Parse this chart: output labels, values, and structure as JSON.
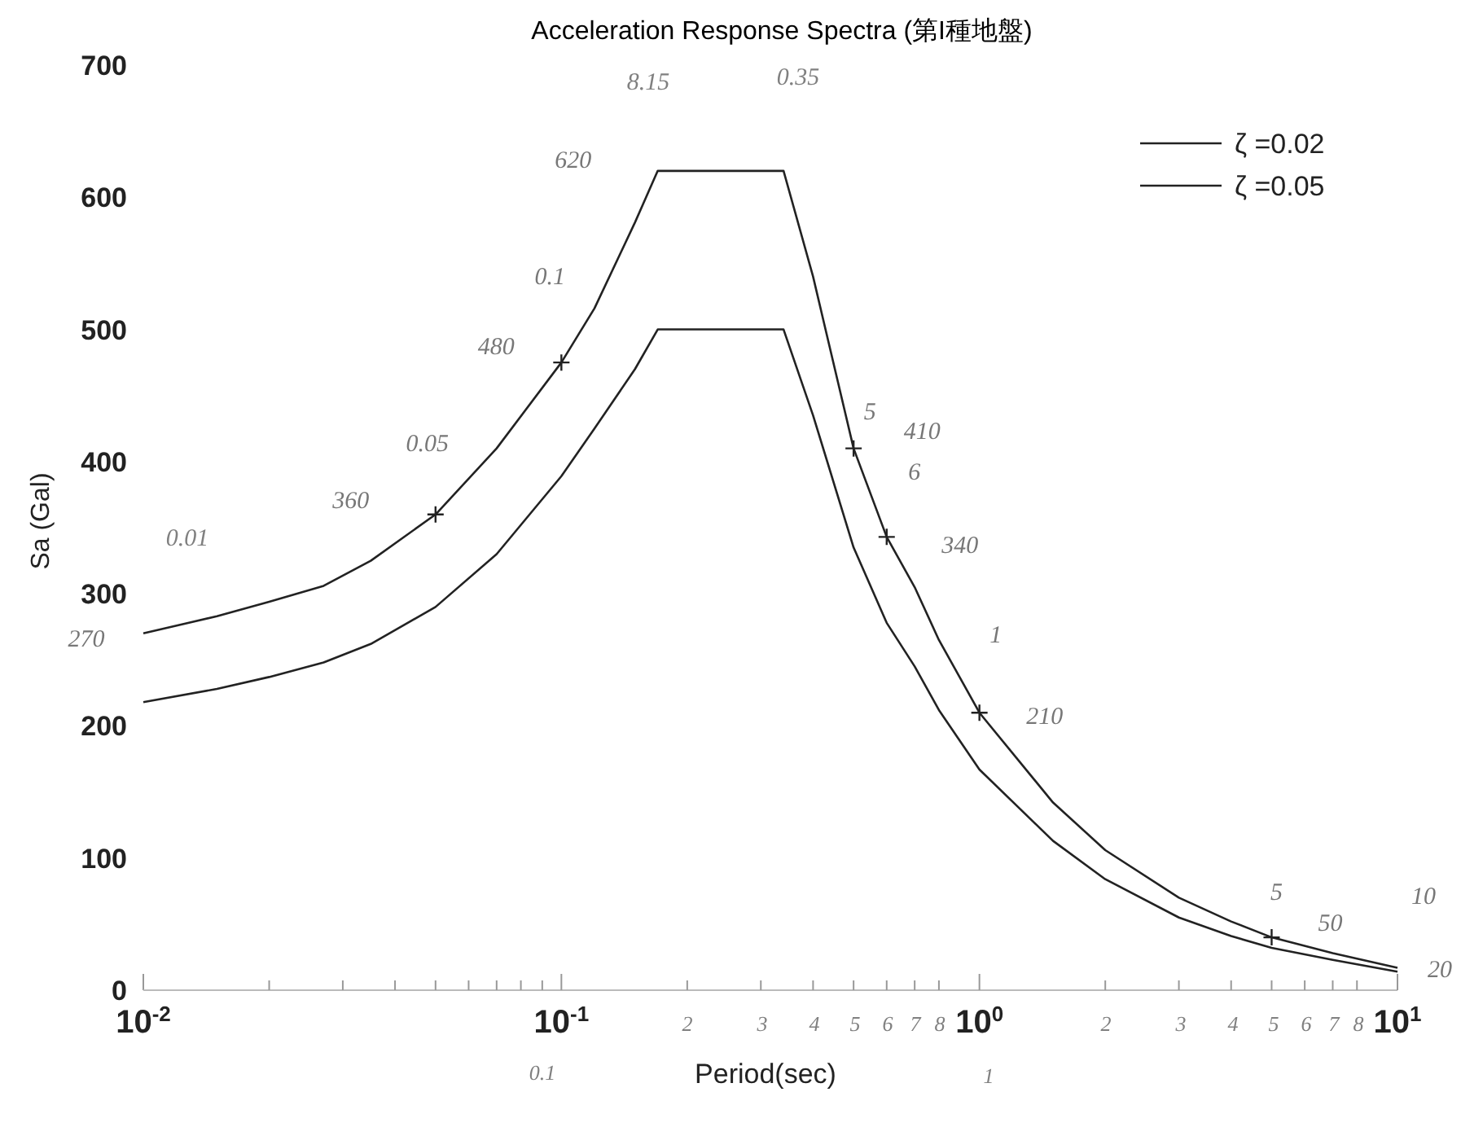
{
  "chart_data": {
    "type": "line",
    "title": "Acceleration Response Spectra (第I種地盤)",
    "xlabel": "Period(sec)",
    "ylabel": "Sa (Gal)",
    "log": "x",
    "xlim": [
      0.01,
      10
    ],
    "ylim": [
      0,
      700
    ],
    "xticks": [
      {
        "value": 0.01,
        "label": "10$^{-2}$"
      },
      {
        "value": 0.02,
        "label": null
      },
      {
        "value": 0.03,
        "label": null
      },
      {
        "value": 0.04,
        "label": null
      },
      {
        "value": 0.05,
        "label": null
      },
      {
        "value": 0.06,
        "label": null
      },
      {
        "value": 0.07,
        "label": null
      },
      {
        "value": 0.08,
        "label": null
      },
      {
        "value": 0.09,
        "label": null
      },
      {
        "value": 0.1,
        "label": "10$^{-1}$"
      },
      {
        "value": 0.2,
        "label": null
      },
      {
        "value": 0.3,
        "label": null
      },
      {
        "value": 0.4,
        "label": null
      },
      {
        "value": 0.5,
        "label": null
      },
      {
        "value": 0.6,
        "label": null
      },
      {
        "value": 0.7,
        "label": null
      },
      {
        "value": 0.8,
        "label": null
      },
      {
        "value": 1,
        "label": "10$^{0}$"
      },
      {
        "value": 2,
        "label": null
      },
      {
        "value": 3,
        "label": null
      },
      {
        "value": 4,
        "label": null
      },
      {
        "value": 5,
        "label": null
      },
      {
        "value": 6,
        "label": null
      },
      {
        "value": 7,
        "label": null
      },
      {
        "value": 8,
        "label": null
      },
      {
        "value": 10,
        "label": "10$^{1}$"
      }
    ],
    "yticks": [
      0,
      100,
      200,
      300,
      400,
      500,
      600,
      700
    ],
    "grid": false,
    "legend": "top right",
    "marker": "none",
    "line_style": "solid",
    "series": [
      {
        "name": "ζ =0.02",
        "color": "#222222",
        "x": [
          0.01,
          0.015,
          0.02,
          0.027,
          0.035,
          0.05,
          0.07,
          0.1,
          0.12,
          0.15,
          0.17,
          0.34,
          0.4,
          0.5,
          0.6,
          0.7,
          0.8,
          1,
          1.5,
          2,
          3,
          4,
          5,
          7,
          10
        ],
        "values": [
          270,
          283,
          294,
          306,
          325,
          360,
          410,
          475,
          516,
          581,
          620,
          620,
          540,
          410,
          343,
          305,
          265,
          210,
          142,
          106,
          70,
          52,
          40,
          28,
          17
        ]
      },
      {
        "name": "ζ =0.05",
        "color": "#222222",
        "x": [
          0.01,
          0.015,
          0.02,
          0.027,
          0.035,
          0.05,
          0.07,
          0.1,
          0.12,
          0.15,
          0.17,
          0.34,
          0.4,
          0.5,
          0.6,
          0.7,
          0.8,
          1,
          1.5,
          2,
          3,
          4,
          5,
          7,
          10
        ],
        "values": [
          218,
          228,
          237,
          248,
          262,
          290,
          330,
          389,
          425,
          470,
          500,
          500,
          435,
          335,
          278,
          245,
          212,
          167,
          113,
          84,
          55,
          41,
          32,
          23,
          14
        ]
      },
      {
        "type": "scatter",
        "marker": "cross",
        "color": "#222222",
        "x": [
          0.05,
          0.1,
          0.5,
          0.6,
          1,
          5
        ],
        "values": [
          360,
          475,
          410,
          343,
          210,
          40
        ]
      }
    ],
    "annotations": [
      "0.01",
      {
        "text": "270",
        "x": 0.01,
        "y": 270
      },
      {
        "text": "360",
        "x": 0.05,
        "y": 360
      },
      {
        "text": "0.05",
        "x": 0.05,
        "y": 360
      },
      {
        "text": "480",
        "x": 0.1,
        "y": 475
      },
      {
        "text": "0.1",
        "x": 0.1,
        "y": 475
      },
      {
        "text": "620",
        "x": 0.17,
        "y": 620
      },
      "8.15",
      "0.35",
      {
        "text": "5",
        "x": 0.5,
        "y": 410
      },
      {
        "text": "410",
        "x": 0.5,
        "y": 410
      },
      {
        "text": "6",
        "x": 0.6,
        "y": 343
      },
      {
        "text": "340",
        "x": 0.6,
        "y": 343
      },
      {
        "text": "1",
        "x": 1,
        "y": 210
      },
      {
        "text": "210",
        "x": 1,
        "y": 210
      },
      {
        "text": "5",
        "x": 5,
        "y": 40
      },
      {
        "text": "50",
        "x": 5,
        "y": 40
      },
      {
        "text": "10",
        "x": 10,
        "y": 17
      },
      {
        "text": "20",
        "x": 10,
        "y": 17
      },
      "0.1",
      "1",
      "2",
      "3",
      "4",
      "5",
      "6",
      "7",
      "8",
      "2",
      "3",
      "4",
      "5",
      "6",
      "7",
      "8"
    ]
  }
}
